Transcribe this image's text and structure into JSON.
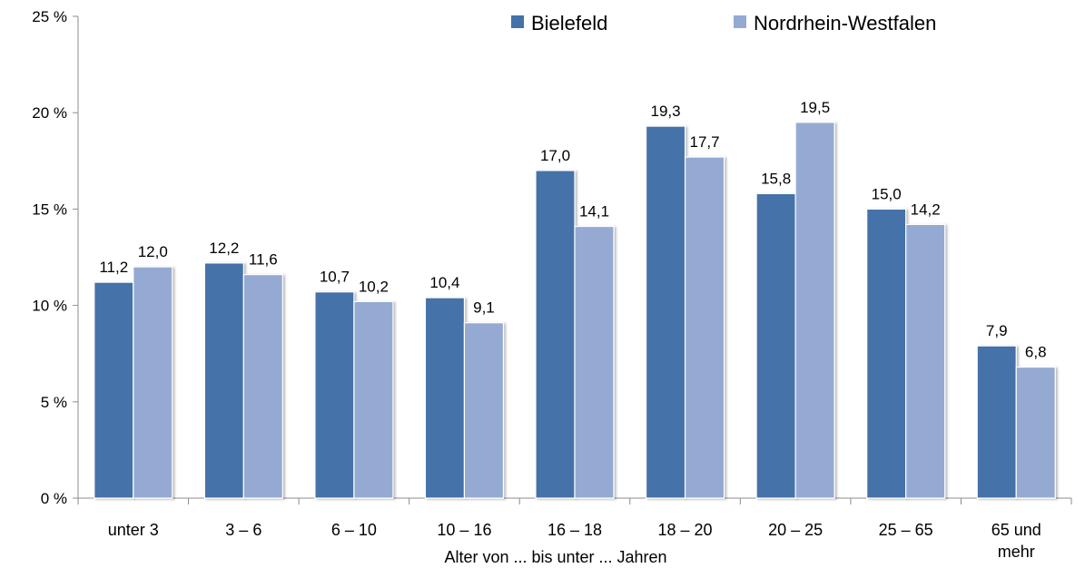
{
  "chart_data": {
    "type": "bar",
    "title": "",
    "xlabel": "Alter von ... bis unter ... Jahren",
    "ylabel": "",
    "ylim": [
      0,
      25
    ],
    "y_ticks": [
      0,
      5,
      10,
      15,
      20,
      25
    ],
    "y_tick_labels": [
      "0 %",
      "5 %",
      "10 %",
      "15 %",
      "20 %",
      "25 %"
    ],
    "grid": false,
    "legend_position": "top-right",
    "categories": [
      [
        "unter 3"
      ],
      [
        "3 –  6"
      ],
      [
        "6 – 10"
      ],
      [
        "10 – 16"
      ],
      [
        "16 – 18"
      ],
      [
        "18 – 20"
      ],
      [
        "20 – 25"
      ],
      [
        "25 – 65"
      ],
      [
        "65 und",
        "mehr"
      ]
    ],
    "series": [
      {
        "name": "Bielefeld",
        "color": "#4472a8",
        "values": [
          11.2,
          12.2,
          10.7,
          10.4,
          17.0,
          19.3,
          15.8,
          15.0,
          7.9
        ],
        "labels": [
          "11,2",
          "12,2",
          "10,7",
          "10,4",
          "17,0",
          "19,3",
          "15,8",
          "15,0",
          "7,9"
        ]
      },
      {
        "name": "Nordrhein-Westfalen",
        "color": "#95aad3",
        "values": [
          12.0,
          11.6,
          10.2,
          9.1,
          14.1,
          17.7,
          19.5,
          14.2,
          6.8
        ],
        "labels": [
          "12,0",
          "11,6",
          "10,2",
          "9,1",
          "14,1",
          "17,7",
          "19,5",
          "14,2",
          "6,8"
        ]
      }
    ]
  }
}
